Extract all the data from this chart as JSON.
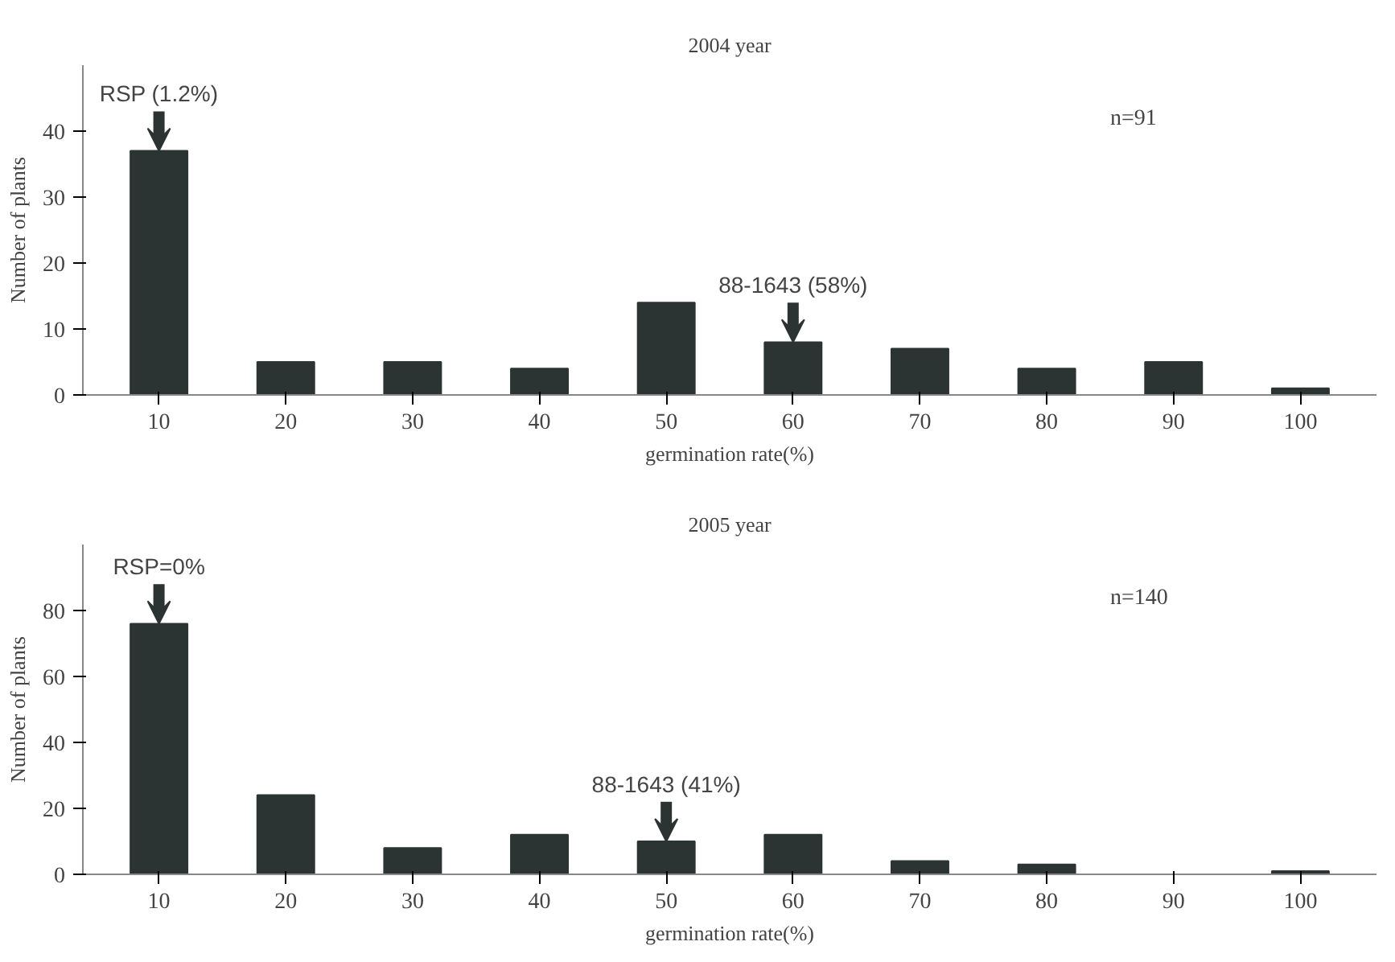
{
  "chart_data": [
    {
      "type": "bar",
      "title": "2004 year",
      "xlabel": "germination rate(%)",
      "ylabel": "Number of plants",
      "categories": [
        "10",
        "20",
        "30",
        "40",
        "50",
        "60",
        "70",
        "80",
        "90",
        "100"
      ],
      "values": [
        37,
        5,
        5,
        4,
        14,
        8,
        7,
        4,
        5,
        1
      ],
      "color": "#2b3333",
      "ylim": [
        0,
        50
      ],
      "yticks": [
        0,
        10,
        20,
        30,
        40
      ],
      "grid": false,
      "annotations": [
        "n=91",
        {
          "text": "RSP (1.2%)",
          "x": "10",
          "y": 37
        },
        {
          "text": "88-1643 (58%)",
          "x": "60",
          "y": 8
        }
      ]
    },
    {
      "type": "bar",
      "title": "2005 year",
      "xlabel": "germination rate(%)",
      "ylabel": "Number of plants",
      "categories": [
        "10",
        "20",
        "30",
        "40",
        "50",
        "60",
        "70",
        "80",
        "90",
        "100"
      ],
      "values": [
        76,
        24,
        8,
        12,
        10,
        12,
        4,
        3,
        0,
        1
      ],
      "color": "#2b3333",
      "ylim": [
        0,
        100
      ],
      "yticks": [
        0,
        20,
        40,
        60,
        80
      ],
      "grid": false,
      "annotations": [
        "n=140",
        {
          "text": "RSP=0%",
          "x": "10",
          "y": 76
        },
        {
          "text": "88-1643 (41%)",
          "x": "50",
          "y": 10
        }
      ]
    }
  ]
}
